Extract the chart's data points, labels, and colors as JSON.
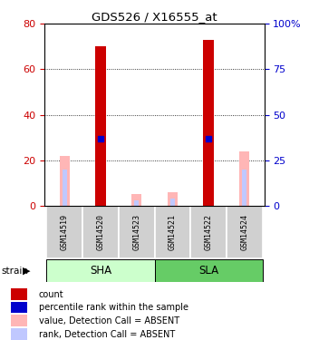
{
  "title": "GDS526 / X16555_at",
  "samples": [
    "GSM14519",
    "GSM14520",
    "GSM14523",
    "GSM14521",
    "GSM14522",
    "GSM14524"
  ],
  "count_values": [
    null,
    70,
    null,
    null,
    73,
    null
  ],
  "rank_values": [
    null,
    37,
    null,
    null,
    37,
    null
  ],
  "absent_value_values": [
    22,
    null,
    5,
    6,
    null,
    24
  ],
  "absent_rank_values": [
    20,
    null,
    3,
    4,
    null,
    20
  ],
  "ylim_left": [
    0,
    80
  ],
  "ylim_right": [
    0,
    100
  ],
  "yticks_left": [
    0,
    20,
    40,
    60,
    80
  ],
  "yticks_right": [
    0,
    25,
    50,
    75,
    100
  ],
  "ytick_labels_right": [
    "0",
    "25",
    "50",
    "75",
    "100%"
  ],
  "count_color": "#cc0000",
  "rank_color": "#0000cc",
  "absent_value_color": "#ffb6b6",
  "absent_rank_color": "#c0c8ff",
  "sha_color": "#ccffcc",
  "sla_color": "#66cc66",
  "sample_box_color": "#d0d0d0",
  "left_tick_color": "#cc0000",
  "right_tick_color": "#0000cc"
}
